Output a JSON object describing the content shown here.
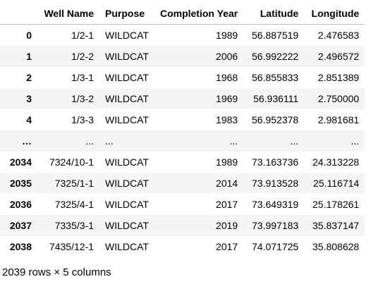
{
  "table": {
    "columns": [
      "Well Name",
      "Purpose",
      "Completion Year",
      "Latitude",
      "Longitude"
    ],
    "rows": [
      {
        "index": "0",
        "cells": [
          "1/2-1",
          "WILDCAT",
          "1989",
          "56.887519",
          "2.476583"
        ]
      },
      {
        "index": "1",
        "cells": [
          "1/2-2",
          "WILDCAT",
          "2006",
          "56.992222",
          "2.496572"
        ]
      },
      {
        "index": "2",
        "cells": [
          "1/3-1",
          "WILDCAT",
          "1968",
          "56.855833",
          "2.851389"
        ]
      },
      {
        "index": "3",
        "cells": [
          "1/3-2",
          "WILDCAT",
          "1969",
          "56.936111",
          "2.750000"
        ]
      },
      {
        "index": "4",
        "cells": [
          "1/3-3",
          "WILDCAT",
          "1983",
          "56.952378",
          "2.981681"
        ]
      },
      {
        "index": "…",
        "cells": [
          "...",
          "...",
          "...",
          "...",
          "..."
        ]
      },
      {
        "index": "2034",
        "cells": [
          "7324/10-1",
          "WILDCAT",
          "1989",
          "73.163736",
          "24.313228"
        ]
      },
      {
        "index": "2035",
        "cells": [
          "7325/1-1",
          "WILDCAT",
          "2014",
          "73.913528",
          "25.116714"
        ]
      },
      {
        "index": "2036",
        "cells": [
          "7325/4-1",
          "WILDCAT",
          "2017",
          "73.649319",
          "25.178261"
        ]
      },
      {
        "index": "2037",
        "cells": [
          "7335/3-1",
          "WILDCAT",
          "2019",
          "73.997183",
          "35.837147"
        ]
      },
      {
        "index": "2038",
        "cells": [
          "7435/12-1",
          "WILDCAT",
          "2017",
          "74.071725",
          "35.808628"
        ]
      }
    ]
  },
  "footer": "2039 rows × 5 columns"
}
